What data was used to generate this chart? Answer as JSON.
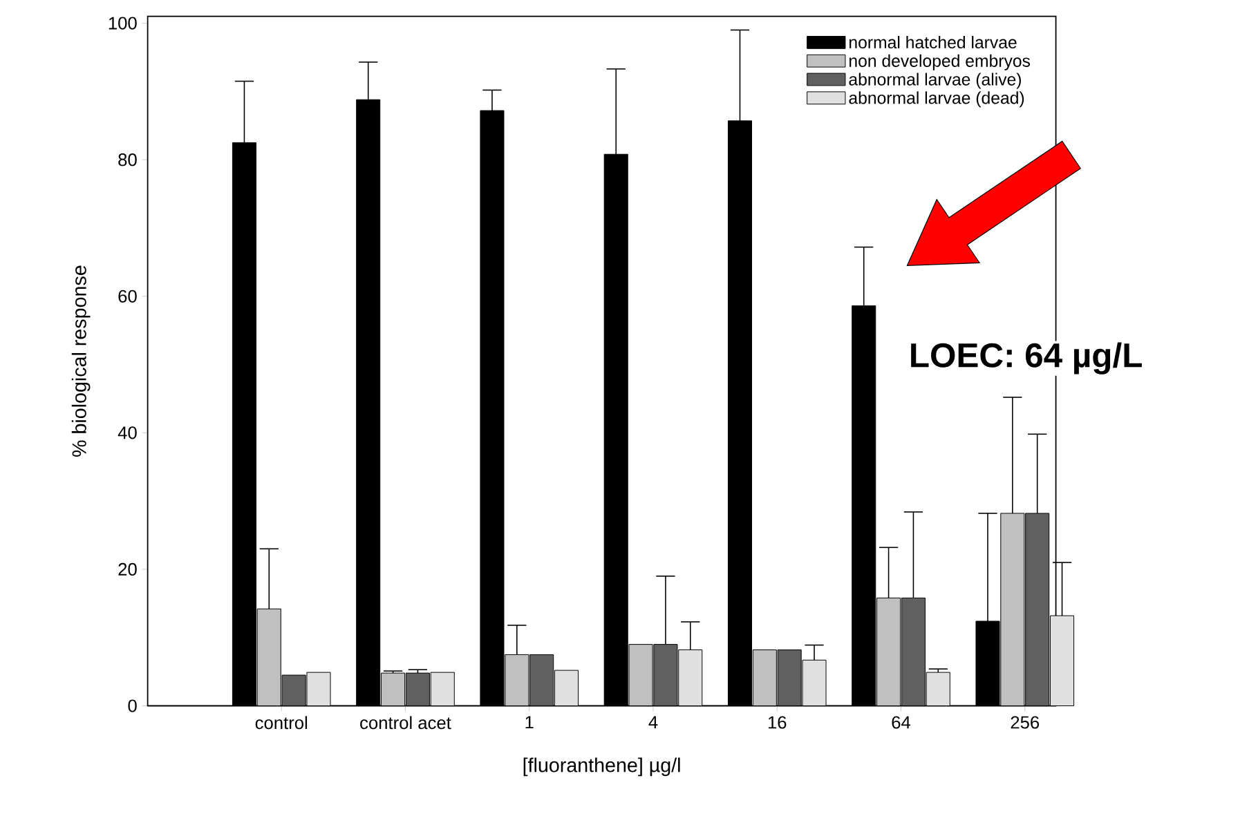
{
  "chart_data": {
    "type": "bar",
    "xlabel": "[fluoranthene] µg/l",
    "ylabel": "% biological response",
    "categories": [
      "control",
      "control acet",
      "1",
      "4",
      "16",
      "64",
      "256"
    ],
    "series": [
      {
        "name": "normal hatched larvae",
        "color": "#000000",
        "values": [
          82.5,
          88.8,
          87.2,
          80.8,
          85.7,
          58.6,
          12.4
        ],
        "errors": [
          [
            82.5,
            91.5
          ],
          [
            88.8,
            94.3
          ],
          [
            87.2,
            90.2
          ],
          [
            80.8,
            93.3
          ],
          [
            85.7,
            99
          ],
          [
            58.6,
            67.2
          ],
          [
            12.4,
            28.2
          ]
        ]
      },
      {
        "name": "non developed embryos",
        "color": "#c0c0c0",
        "values": [
          14.2,
          4.8,
          7.5,
          9,
          8.2,
          15.8,
          28.2
        ],
        "errors": [
          [
            14.2,
            23
          ],
          [
            4.8,
            5.1
          ],
          [
            7.5,
            11.8
          ],
          null,
          null,
          [
            15.8,
            23.2
          ],
          [
            28.2,
            45.2
          ]
        ]
      },
      {
        "name": "abnormal larvae (alive)",
        "color": "#606060",
        "values": [
          4.5,
          4.8,
          7.5,
          9,
          8.2,
          15.8,
          28.2
        ],
        "errors": [
          null,
          [
            4.8,
            5.3
          ],
          null,
          [
            9,
            19
          ],
          null,
          [
            15.8,
            28.4
          ],
          [
            28.2,
            39.8
          ]
        ]
      },
      {
        "name": "abnormal larvae (dead)",
        "color": "#e0e0e0",
        "values": [
          4.9,
          4.9,
          5.2,
          8.2,
          6.7,
          4.9,
          13.2
        ],
        "errors": [
          null,
          null,
          null,
          [
            8.2,
            12.3
          ],
          [
            6.7,
            8.9
          ],
          [
            4.9,
            5.4
          ],
          [
            13.2,
            21
          ]
        ]
      }
    ],
    "ylim": [
      0,
      101
    ],
    "yticks": [
      0,
      20,
      40,
      60,
      80,
      100
    ],
    "grid": false,
    "legend": "top right",
    "annotations": [
      "LOEC: 64 µg/L"
    ]
  }
}
